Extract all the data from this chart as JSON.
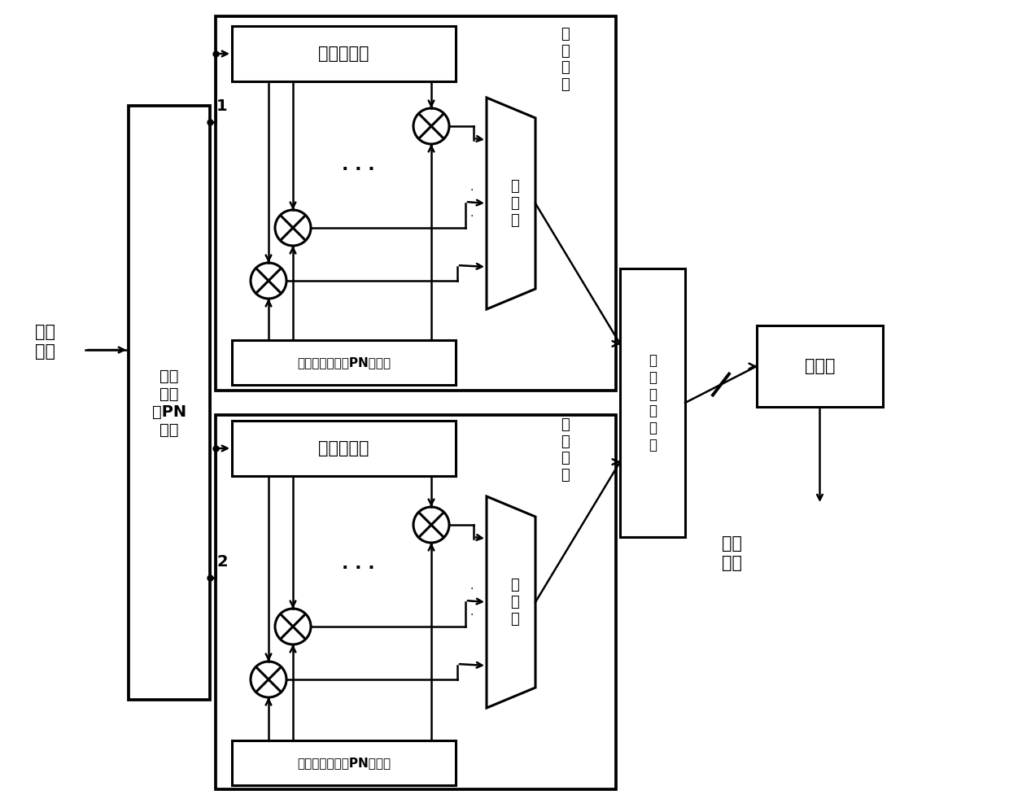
{
  "bg": "#ffffff",
  "blw": 2.2,
  "alw": 1.8,
  "labels": {
    "fen_li": "分离\n数据",
    "pn": "嵌套\n性循\n环PN\n序列",
    "sr1": "移位寄存器",
    "mem1": "存储器（原循环PN序列）",
    "acc1": "累\n加\n器",
    "win1": "第\n一\n窗\n口",
    "sr2": "移位寄存器",
    "mem2": "存储器（原循环PN序列）",
    "acc2": "累\n加\n器",
    "win2": "第\n二\n窗\n口",
    "mvd": "最\n大\n値\n检\n测\n器",
    "comp": "比较器",
    "sync": "定时\n同步",
    "n1": "1",
    "n2": "2",
    "dots": ". . ."
  }
}
